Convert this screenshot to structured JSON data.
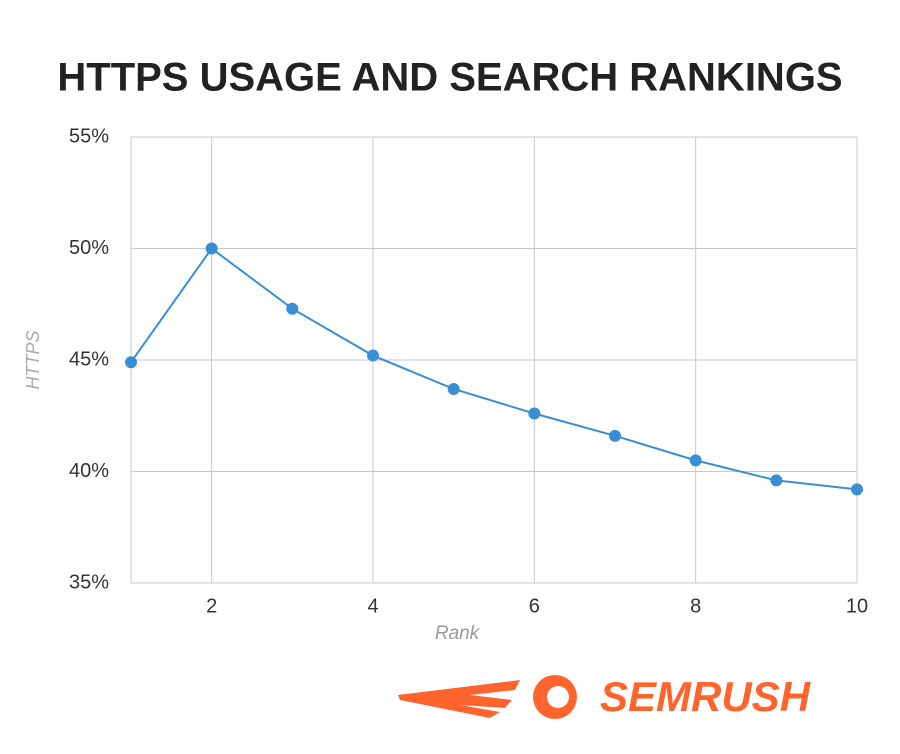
{
  "chart_data": {
    "type": "line",
    "title": "HTTPS USAGE AND SEARCH RANKINGS",
    "x_label": "Rank",
    "y_label": "HTTPS",
    "x": [
      1,
      2,
      3,
      4,
      5,
      6,
      7,
      8,
      9,
      10
    ],
    "series": [
      {
        "name": "HTTPS",
        "color": "#3a8fd3",
        "values": [
          44.9,
          50.0,
          47.3,
          45.2,
          43.7,
          42.6,
          41.6,
          40.5,
          39.6,
          39.2
        ]
      }
    ],
    "xlim": [
      1,
      10
    ],
    "xticks": [
      2,
      4,
      6,
      8,
      10
    ],
    "ylim": [
      35,
      55
    ],
    "yticks": [
      {
        "value": 35,
        "label": "35%"
      },
      {
        "value": 40,
        "label": "40%"
      },
      {
        "value": 45,
        "label": "45%"
      },
      {
        "value": 50,
        "label": "50%"
      },
      {
        "value": 55,
        "label": "55%"
      }
    ],
    "grid": true
  },
  "logo_text": "SEMRUSH"
}
